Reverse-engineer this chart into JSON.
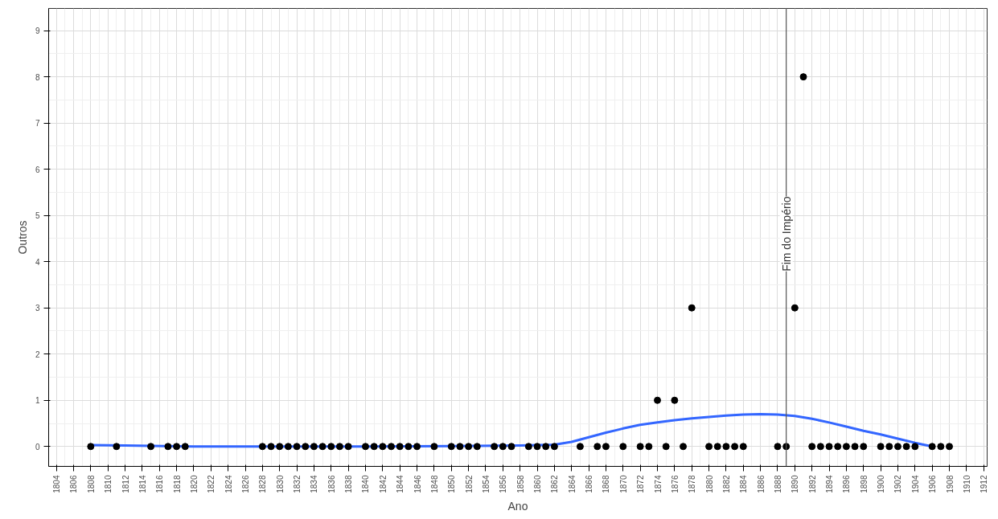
{
  "chart_data": {
    "type": "scatter",
    "xlabel": "Ano",
    "ylabel": "Outros",
    "xlim": [
      1803.1,
      1912.4
    ],
    "ylim": [
      -0.43,
      9.48
    ],
    "xticks": [
      1804,
      1806,
      1808,
      1810,
      1812,
      1814,
      1816,
      1818,
      1820,
      1822,
      1824,
      1826,
      1828,
      1830,
      1832,
      1834,
      1836,
      1838,
      1840,
      1842,
      1844,
      1846,
      1848,
      1850,
      1852,
      1854,
      1856,
      1858,
      1860,
      1862,
      1864,
      1866,
      1868,
      1870,
      1872,
      1874,
      1876,
      1878,
      1880,
      1882,
      1884,
      1886,
      1888,
      1890,
      1892,
      1894,
      1896,
      1898,
      1900,
      1902,
      1904,
      1906,
      1908,
      1910,
      1912
    ],
    "yticks": [
      0,
      1,
      2,
      3,
      4,
      5,
      6,
      7,
      8,
      9
    ],
    "grid": true,
    "marker": "circle",
    "ref_lines": [
      {
        "axis": "x",
        "value": 1889,
        "label": "Fim do Império",
        "color": "#555555"
      }
    ],
    "series": [
      {
        "color": "#000000",
        "x": [
          1808,
          1811,
          1815,
          1817,
          1818,
          1819,
          1828,
          1829,
          1830,
          1831,
          1832,
          1833,
          1834,
          1835,
          1836,
          1837,
          1838,
          1840,
          1841,
          1842,
          1843,
          1844,
          1845,
          1846,
          1848,
          1850,
          1851,
          1852,
          1853,
          1855,
          1856,
          1857,
          1859,
          1860,
          1861,
          1862,
          1865,
          1867,
          1868,
          1870,
          1872,
          1873,
          1874,
          1875,
          1876,
          1877,
          1878,
          1880,
          1881,
          1882,
          1883,
          1884,
          1888,
          1889,
          1890,
          1891,
          1892,
          1893,
          1894,
          1895,
          1896,
          1897,
          1898,
          1900,
          1901,
          1902,
          1903,
          1904,
          1906,
          1907,
          1908
        ],
        "values": [
          0,
          0,
          0,
          0,
          0,
          0,
          0,
          0,
          0,
          0,
          0,
          0,
          0,
          0,
          0,
          0,
          0,
          0,
          0,
          0,
          0,
          0,
          0,
          0,
          0,
          0,
          0,
          0,
          0,
          0,
          0,
          0,
          0,
          0,
          0,
          0,
          0,
          0,
          0,
          0,
          0,
          0,
          1,
          0,
          1,
          0,
          3,
          0,
          0,
          0,
          0,
          0,
          0,
          0,
          3,
          8,
          0,
          0,
          0,
          0,
          0,
          0,
          0,
          0,
          0,
          0,
          0,
          0,
          0,
          0,
          0
        ]
      },
      {
        "type": "line",
        "color": "#3366ff",
        "line_style": "solid",
        "marker": "none",
        "x": [
          1808,
          1812,
          1820,
          1830,
          1840,
          1850,
          1858,
          1862,
          1864,
          1866,
          1868,
          1870,
          1872,
          1874,
          1876,
          1878,
          1880,
          1882,
          1884,
          1886,
          1888,
          1890,
          1892,
          1894,
          1896,
          1898,
          1900,
          1902,
          1904,
          1906
        ],
        "values": [
          0.03,
          0.02,
          0.0,
          0.0,
          0.0,
          0.01,
          0.02,
          0.04,
          0.1,
          0.2,
          0.3,
          0.39,
          0.47,
          0.52,
          0.57,
          0.61,
          0.64,
          0.67,
          0.69,
          0.7,
          0.69,
          0.66,
          0.6,
          0.52,
          0.43,
          0.34,
          0.26,
          0.17,
          0.08,
          0.0
        ]
      }
    ]
  }
}
